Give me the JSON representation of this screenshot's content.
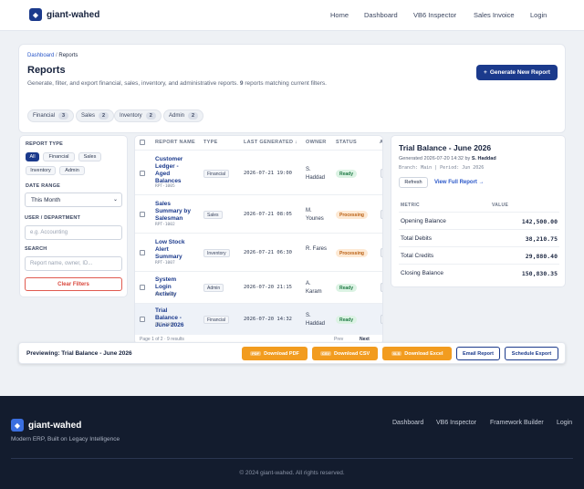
{
  "brand": {
    "name": "giant-wahed"
  },
  "topnav": [
    "Home",
    "Dashboard",
    "VB6 Inspector",
    "Sales Invoice",
    "Login"
  ],
  "breadcrumb": {
    "root": "Dashboard",
    "sep": "/",
    "current": "Reports"
  },
  "page": {
    "title": "Reports",
    "subtitle_pre": "Generate, filter, and export financial, sales, inventory, and administrative reports.",
    "subtitle_count": "9",
    "subtitle_post": "reports matching current filters.",
    "generate_label": "Generate New Report"
  },
  "summary_chips": [
    {
      "label": "Financial",
      "count": "3"
    },
    {
      "label": "Sales",
      "count": "2"
    },
    {
      "label": "Inventory",
      "count": "2"
    },
    {
      "label": "Admin",
      "count": "2"
    }
  ],
  "filters": {
    "type_label": "REPORT TYPE",
    "types": [
      "All",
      "Financial",
      "Sales",
      "Inventory",
      "Admin"
    ],
    "active_type": "All",
    "date_label": "DATE RANGE",
    "date_value": "This Month",
    "user_label": "USER / DEPARTMENT",
    "user_placeholder": "e.g. Accounting",
    "search_label": "SEARCH",
    "search_placeholder": "Report name, owner, ID...",
    "clear_label": "Clear Filters"
  },
  "table": {
    "headers": [
      "REPORT NAME",
      "TYPE",
      "LAST GENERATED ↓",
      "OWNER",
      "STATUS",
      "A"
    ],
    "rows": [
      {
        "name": "Customer Ledger - Aged Balances",
        "id": "RPT-1005",
        "type": "Financial",
        "date": "2026-07-21 19:00",
        "owner": "S. Haddad",
        "status": "Ready"
      },
      {
        "name": "Sales Summary by Salesman",
        "id": "RPT-1002",
        "type": "Sales",
        "date": "2026-07-21 08:05",
        "owner": "M. Younes",
        "status": "Processing"
      },
      {
        "name": "Low Stock Alert Summary",
        "id": "RPT-1007",
        "type": "Inventory",
        "date": "2026-07-21 06:30",
        "owner": "R. Fares",
        "status": "Processing"
      },
      {
        "name": "System Login Activity",
        "id": "RPT-1008",
        "type": "Admin",
        "date": "2026-07-20 21:15",
        "owner": "A. Karam",
        "status": "Ready"
      },
      {
        "name": "Trial Balance - June 2026",
        "id": "RPT-1001",
        "type": "Financial",
        "date": "2026-07-20 14:32",
        "owner": "S. Haddad",
        "status": "Ready"
      }
    ],
    "pager_text": "Page 1 of 2 · 9 results",
    "prev_label": "Prev",
    "next_label": "Next"
  },
  "preview": {
    "title": "Trial Balance - June 2026",
    "generated_pre": "Generated 2026-07-20 14:32 by",
    "generated_by": "S. Haddad",
    "meta": "Branch: Main | Period: Jun 2026",
    "refresh_label": "Refresh",
    "view_label": "View Full Report →",
    "col_metric": "METRIC",
    "col_value": "VALUE",
    "rows": [
      {
        "metric": "Opening Balance",
        "value": "142,500.00"
      },
      {
        "metric": "Total Debits",
        "value": "38,210.75"
      },
      {
        "metric": "Total Credits",
        "value": "29,880.40"
      },
      {
        "metric": "Closing Balance",
        "value": "150,830.35"
      }
    ]
  },
  "exportbar": {
    "label": "Previewing: Trial Balance - June 2026",
    "pdf": {
      "fmt": "PDF",
      "label": "Download PDF"
    },
    "csv": {
      "fmt": "CSV",
      "label": "Download CSV"
    },
    "xls": {
      "fmt": "XLS",
      "label": "Download Excel"
    },
    "email_label": "Email Report",
    "schedule_label": "Schedule Export"
  },
  "footer": {
    "tagline": "Modern ERP, Built on Legacy Intelligence",
    "nav": [
      "Dashboard",
      "VB6 Inspector",
      "Framework Builder",
      "Login"
    ],
    "copyright": "© 2024 giant-wahed. All rights reserved."
  },
  "colors": {
    "primary": "#1b3a8c",
    "accent": "#f29c1f",
    "footer": "#131c2e",
    "ready": "#1f7a44",
    "processing": "#b95e10",
    "danger": "#d9473c"
  }
}
